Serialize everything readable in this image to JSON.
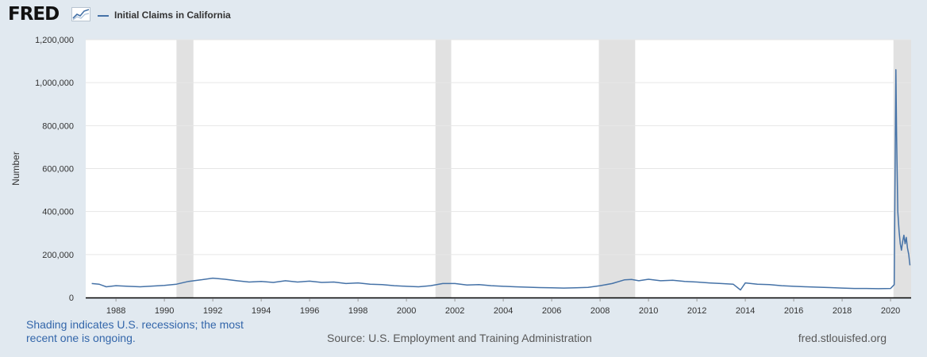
{
  "header": {
    "logo_text": "FRED",
    "logo_icon": "chart-line-icon",
    "legend_label": "Initial Claims in California"
  },
  "footer": {
    "recession_note": "Shading indicates U.S. recessions; the most recent one is ongoing.",
    "source": "Source: U.S. Employment and Training Administration",
    "site": "fred.stlouisfed.org"
  },
  "colors": {
    "background": "#e1e9f0",
    "plot_background": "#ffffff",
    "series": "#4572a7",
    "recession_shading": "#e1e1e1",
    "gridline": "#e6e6e6",
    "axis": "#000000"
  },
  "chart_data": {
    "type": "line",
    "ylabel": "Number",
    "xlabel": "",
    "xlim": [
      1986.75,
      2020.85
    ],
    "ylim": [
      0,
      1200000
    ],
    "grid": true,
    "legend_placement": "top-left",
    "x_ticks": [
      "1988",
      "1990",
      "1992",
      "1994",
      "1996",
      "1998",
      "2000",
      "2002",
      "2004",
      "2006",
      "2008",
      "2010",
      "2012",
      "2014",
      "2016",
      "2018",
      "2020"
    ],
    "y_ticks": [
      {
        "value": 0,
        "label": "0"
      },
      {
        "value": 200000,
        "label": "200,000"
      },
      {
        "value": 400000,
        "label": "400,000"
      },
      {
        "value": 600000,
        "label": "600,000"
      },
      {
        "value": 800000,
        "label": "800,000"
      },
      {
        "value": 1000000,
        "label": "1,000,000"
      },
      {
        "value": 1200000,
        "label": "1,200,000"
      }
    ],
    "recessions": [
      {
        "start": 1990.5,
        "end": 1991.2
      },
      {
        "start": 2001.2,
        "end": 2001.85
      },
      {
        "start": 2007.95,
        "end": 2009.45
      },
      {
        "start": 2020.12,
        "end": 2020.85
      }
    ],
    "series": [
      {
        "name": "Initial Claims in California",
        "x": [
          1987.0,
          1987.3,
          1987.6,
          1988.0,
          1988.5,
          1989.0,
          1989.5,
          1990.0,
          1990.5,
          1991.0,
          1991.5,
          1992.0,
          1992.5,
          1993.0,
          1993.5,
          1994.0,
          1994.5,
          1995.0,
          1995.5,
          1996.0,
          1996.5,
          1997.0,
          1997.5,
          1998.0,
          1998.5,
          1999.0,
          1999.5,
          2000.0,
          2000.5,
          2001.0,
          2001.5,
          2002.0,
          2002.5,
          2003.0,
          2003.5,
          2004.0,
          2004.5,
          2005.0,
          2005.5,
          2006.0,
          2006.5,
          2007.0,
          2007.5,
          2008.0,
          2008.5,
          2009.0,
          2009.3,
          2009.6,
          2010.0,
          2010.5,
          2011.0,
          2011.5,
          2012.0,
          2012.5,
          2013.0,
          2013.5,
          2013.8,
          2014.0,
          2014.5,
          2015.0,
          2015.5,
          2016.0,
          2016.5,
          2017.0,
          2017.5,
          2018.0,
          2018.5,
          2019.0,
          2019.5,
          2020.0,
          2020.15,
          2020.22,
          2020.25,
          2020.3,
          2020.35,
          2020.4,
          2020.45,
          2020.5,
          2020.55,
          2020.6,
          2020.65,
          2020.7,
          2020.75,
          2020.8
        ],
        "values": [
          65000,
          62000,
          50000,
          55000,
          52000,
          50000,
          53000,
          56000,
          62000,
          75000,
          82000,
          90000,
          85000,
          78000,
          72000,
          75000,
          70000,
          78000,
          72000,
          76000,
          70000,
          72000,
          65000,
          68000,
          62000,
          60000,
          55000,
          52000,
          50000,
          55000,
          65000,
          65000,
          58000,
          60000,
          55000,
          52000,
          50000,
          48000,
          46000,
          45000,
          44000,
          45000,
          47000,
          55000,
          65000,
          82000,
          84000,
          78000,
          85000,
          78000,
          80000,
          75000,
          72000,
          68000,
          65000,
          62000,
          35000,
          68000,
          62000,
          60000,
          55000,
          52000,
          50000,
          48000,
          46000,
          44000,
          42000,
          42000,
          41000,
          42000,
          60000,
          1060000,
          750000,
          400000,
          310000,
          250000,
          220000,
          260000,
          290000,
          250000,
          280000,
          230000,
          200000,
          150000
        ]
      }
    ]
  }
}
